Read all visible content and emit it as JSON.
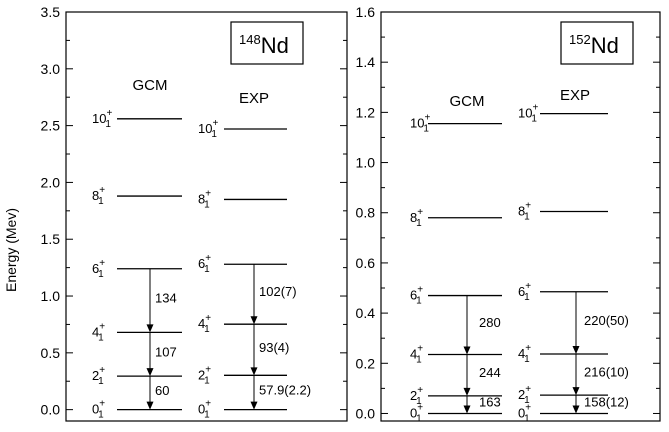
{
  "ylabel": "Energy (Mev)",
  "panels": [
    {
      "id": "nd148",
      "nucleus_mass": "148",
      "nucleus_symbol": "Nd",
      "ylim": [
        -0.1,
        3.5
      ],
      "ticks": [
        "0.0",
        "0.5",
        "1.0",
        "1.5",
        "2.0",
        "2.5",
        "3.0",
        "3.5"
      ],
      "tick_values": [
        0.0,
        0.5,
        1.0,
        1.5,
        2.0,
        2.5,
        3.0,
        3.5
      ],
      "columns": [
        {
          "name": "GCM",
          "levels": [
            {
              "spin": "0",
              "energy": 0.0
            },
            {
              "spin": "2",
              "energy": 0.295
            },
            {
              "spin": "4",
              "energy": 0.68
            },
            {
              "spin": "6",
              "energy": 1.24
            },
            {
              "spin": "8",
              "energy": 1.88
            },
            {
              "spin": "10",
              "energy": 2.56
            }
          ],
          "transitions": [
            "60",
            "107",
            "134"
          ]
        },
        {
          "name": "EXP",
          "levels": [
            {
              "spin": "0",
              "energy": 0.0
            },
            {
              "spin": "2",
              "energy": 0.302
            },
            {
              "spin": "4",
              "energy": 0.752
            },
            {
              "spin": "6",
              "energy": 1.28
            },
            {
              "spin": "8",
              "energy": 1.85
            },
            {
              "spin": "10",
              "energy": 2.47
            }
          ],
          "transitions": [
            "57.9(2.2)",
            "93(4)",
            "102(7)"
          ]
        }
      ]
    },
    {
      "id": "nd152",
      "nucleus_mass": "152",
      "nucleus_symbol": "Nd",
      "ylim": [
        -0.03,
        1.6
      ],
      "ticks": [
        "0.0",
        "0.2",
        "0.4",
        "0.6",
        "0.8",
        "1.0",
        "1.2",
        "1.4",
        "1.6"
      ],
      "tick_values": [
        0.0,
        0.2,
        0.4,
        0.6,
        0.8,
        1.0,
        1.2,
        1.4,
        1.6
      ],
      "columns": [
        {
          "name": "GCM",
          "levels": [
            {
              "spin": "0",
              "energy": 0.0
            },
            {
              "spin": "2",
              "energy": 0.07
            },
            {
              "spin": "4",
              "energy": 0.235
            },
            {
              "spin": "6",
              "energy": 0.47
            },
            {
              "spin": "8",
              "energy": 0.78
            },
            {
              "spin": "10",
              "energy": 1.155
            }
          ],
          "transitions": [
            "163",
            "244",
            "280"
          ]
        },
        {
          "name": "EXP",
          "levels": [
            {
              "spin": "0",
              "energy": 0.0
            },
            {
              "spin": "2",
              "energy": 0.073
            },
            {
              "spin": "4",
              "energy": 0.237
            },
            {
              "spin": "6",
              "energy": 0.485
            },
            {
              "spin": "8",
              "energy": 0.805
            },
            {
              "spin": "10",
              "energy": 1.195
            }
          ],
          "transitions": [
            "158(12)",
            "216(10)",
            "220(50)"
          ]
        }
      ]
    }
  ]
}
